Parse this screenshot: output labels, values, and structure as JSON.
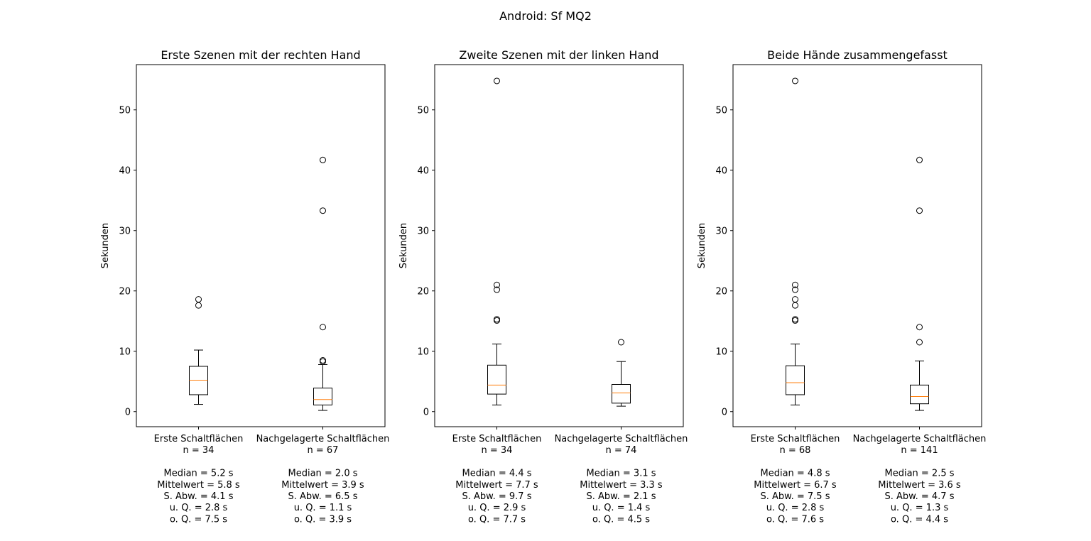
{
  "figure_title": "Android: Sf MQ2",
  "chart_data": [
    {
      "type": "box",
      "title": "Erste Szenen mit der rechten Hand",
      "ylabel": "Sekunden",
      "ylim": [
        -2.5,
        57.5
      ],
      "yticks": [
        0,
        10,
        20,
        30,
        40,
        50
      ],
      "boxes": [
        {
          "category": "Erste Schaltflächen",
          "label_lines": [
            "Erste Schaltflächen",
            "n = 34",
            "",
            "Median = 5.2 s",
            "Mittelwert = 5.8 s",
            "S. Abw. = 4.1 s",
            "u. Q. = 2.8 s",
            "o. Q. = 7.5 s"
          ],
          "whisker_low": 1.2,
          "q1": 2.8,
          "median": 5.2,
          "q3": 7.5,
          "whisker_high": 10.2,
          "outliers": [
            17.6,
            18.6
          ]
        },
        {
          "category": "Nachgelagerte Schaltflächen",
          "label_lines": [
            "Nachgelagerte Schaltflächen",
            "n = 67",
            "",
            "Median = 2.0 s",
            "Mittelwert = 3.9 s",
            "S. Abw. = 6.5 s",
            "u. Q. = 1.1 s",
            "o. Q. = 3.9 s"
          ],
          "whisker_low": 0.2,
          "q1": 1.1,
          "median": 2.0,
          "q3": 3.9,
          "whisker_high": 7.8,
          "outliers": [
            8.3,
            8.5,
            14.0,
            33.3,
            41.7
          ]
        }
      ]
    },
    {
      "type": "box",
      "title": "Zweite Szenen mit der linken Hand",
      "ylabel": "Sekunden",
      "ylim": [
        -2.5,
        57.5
      ],
      "yticks": [
        0,
        10,
        20,
        30,
        40,
        50
      ],
      "boxes": [
        {
          "category": "Erste Schaltflächen",
          "label_lines": [
            "Erste Schaltflächen",
            "n = 34",
            "",
            "Median = 4.4 s",
            "Mittelwert = 7.7 s",
            "S. Abw. = 9.7 s",
            "u. Q. = 2.9 s",
            "o. Q. = 7.7 s"
          ],
          "whisker_low": 1.1,
          "q1": 2.9,
          "median": 4.4,
          "q3": 7.7,
          "whisker_high": 11.2,
          "outliers": [
            15.1,
            15.3,
            20.2,
            21.0,
            54.8
          ]
        },
        {
          "category": "Nachgelagerte Schaltflächen",
          "label_lines": [
            "Nachgelagerte Schaltflächen",
            "n = 74",
            "",
            "Median = 3.1 s",
            "Mittelwert = 3.3 s",
            "S. Abw. = 2.1 s",
            "u. Q. = 1.4 s",
            "o. Q. = 4.5 s"
          ],
          "whisker_low": 0.9,
          "q1": 1.4,
          "median": 3.1,
          "q3": 4.5,
          "whisker_high": 8.3,
          "outliers": [
            11.5
          ]
        }
      ]
    },
    {
      "type": "box",
      "title": "Beide Hände zusammengefasst",
      "ylabel": "Sekunden",
      "ylim": [
        -2.5,
        57.5
      ],
      "yticks": [
        0,
        10,
        20,
        30,
        40,
        50
      ],
      "boxes": [
        {
          "category": "Erste Schaltflächen",
          "label_lines": [
            "Erste Schaltflächen",
            "n = 68",
            "",
            "Median = 4.8 s",
            "Mittelwert = 6.7 s",
            "S. Abw. = 7.5 s",
            "u. Q. = 2.8 s",
            "o. Q. = 7.6 s"
          ],
          "whisker_low": 1.1,
          "q1": 2.8,
          "median": 4.8,
          "q3": 7.6,
          "whisker_high": 11.2,
          "outliers": [
            15.1,
            15.3,
            17.6,
            18.6,
            20.2,
            21.0,
            54.8
          ]
        },
        {
          "category": "Nachgelagerte Schaltflächen",
          "label_lines": [
            "Nachgelagerte Schaltflächen",
            "n = 141",
            "",
            "Median = 2.5 s",
            "Mittelwert = 3.6 s",
            "S. Abw. = 4.7 s",
            "u. Q. = 1.3 s",
            "o. Q. = 4.4 s"
          ],
          "whisker_low": 0.2,
          "q1": 1.3,
          "median": 2.5,
          "q3": 4.4,
          "whisker_high": 8.4,
          "outliers": [
            11.5,
            14.0,
            33.3,
            41.7
          ]
        }
      ]
    }
  ],
  "colors": {
    "median_line": "#ff7f0e",
    "stroke": "#000000",
    "background": "#ffffff"
  }
}
